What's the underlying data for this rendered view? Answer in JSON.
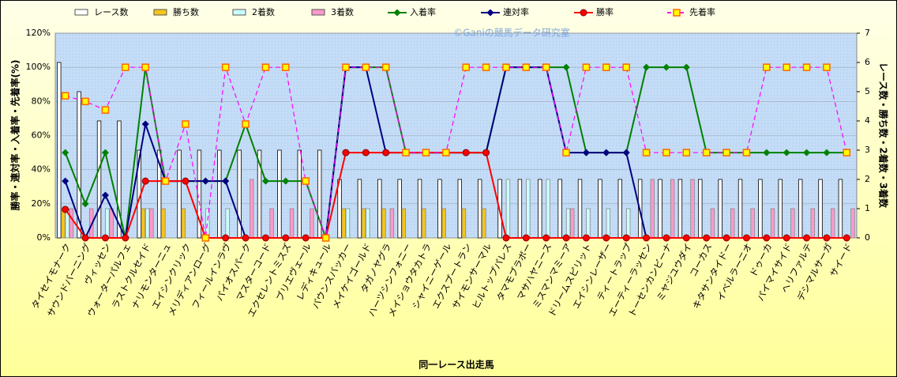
{
  "chart_data": {
    "type": "combo",
    "annotation": "©Ganiの競馬データ研究室",
    "x_label": "同一レース出走馬",
    "y_label": "勝率・連対率・入着率・先着率(%)",
    "y2_label": "レース数・勝ち数・2着数・3着数",
    "categories": [
      "タイセイモナーク",
      "サウンドバーニング",
      "ヴィッセン",
      "ウォーターパルフェ",
      "ラストクルセイド",
      "ナリモンターニュ",
      "エイシンクリック",
      "メリディアンローグ",
      "フィールインラヴ",
      "パイオスパーク",
      "マスターコード",
      "エクセレントミスズ",
      "ブリエヴェール",
      "レディキュール",
      "バウンスバッカー",
      "メイケイゴールド",
      "タガノヤグラ",
      "ハーツシンフォニー",
      "メイショウタカトラ",
      "シャイニーゲール",
      "エクスプートラン",
      "サイモンサーマル",
      "ヒルトップパレス",
      "タマモブラボー",
      "マサハヤニース",
      "ミスマンマミーア",
      "ドリームスピリット",
      "エイシンレーザー",
      "ティートラップ",
      "エーティーラッセン",
      "トーセンカンビーナ",
      "ミヤジユウダイ",
      "コーカス",
      "キタサンタイドー",
      "イベルラーニオ",
      "ドゥーカ",
      "パイマイサイド",
      "ヘリファルテ",
      "デシマルサーガ",
      "サイード"
    ],
    "ylim": [
      0,
      120
    ],
    "yticks": [
      {
        "value": 0,
        "label": "0%"
      },
      {
        "value": 20,
        "label": "20%"
      },
      {
        "value": 40,
        "label": "40%"
      },
      {
        "value": 60,
        "label": "60%"
      },
      {
        "value": 80,
        "label": "80%"
      },
      {
        "value": 100,
        "label": "100%"
      },
      {
        "value": 120,
        "label": "120%"
      }
    ],
    "y2lim": [
      0,
      7
    ],
    "y2ticks": [
      0,
      1,
      2,
      3,
      4,
      5,
      6,
      7
    ],
    "series": [
      {
        "name": "レース数",
        "type": "bar",
        "axis": "y2",
        "color": "#ffffff",
        "values": [
          6,
          5,
          4,
          4,
          3,
          3,
          3,
          3,
          3,
          3,
          3,
          3,
          3,
          3,
          2,
          2,
          2,
          2,
          2,
          2,
          2,
          2,
          2,
          2,
          2,
          2,
          2,
          2,
          2,
          2,
          2,
          2,
          2,
          2,
          2,
          2,
          2,
          2,
          2,
          2
        ]
      },
      {
        "name": "勝ち数",
        "type": "bar",
        "axis": "y2",
        "color": "#f5c518",
        "values": [
          1,
          0,
          0,
          0,
          1,
          1,
          1,
          0,
          0,
          0,
          0,
          0,
          0,
          0,
          1,
          1,
          1,
          1,
          1,
          1,
          1,
          1,
          0,
          0,
          0,
          0,
          0,
          0,
          0,
          0,
          0,
          0,
          0,
          0,
          0,
          0,
          0,
          0,
          0,
          0
        ]
      },
      {
        "name": "2着数",
        "type": "bar",
        "axis": "y2",
        "color": "#ccffff",
        "values": [
          1,
          0,
          1,
          0,
          1,
          0,
          0,
          1,
          1,
          0,
          0,
          0,
          0,
          0,
          1,
          1,
          0,
          0,
          0,
          0,
          0,
          0,
          2,
          2,
          2,
          1,
          1,
          1,
          1,
          0,
          0,
          0,
          0,
          0,
          0,
          0,
          0,
          0,
          0,
          0
        ]
      },
      {
        "name": "3着数",
        "type": "bar",
        "axis": "y2",
        "color": "#ff99cc",
        "values": [
          1,
          1,
          1,
          0,
          1,
          0,
          0,
          0,
          0,
          2,
          1,
          1,
          1,
          0,
          0,
          0,
          1,
          0,
          0,
          0,
          0,
          0,
          0,
          0,
          0,
          1,
          0,
          0,
          0,
          2,
          2,
          2,
          1,
          1,
          1,
          1,
          1,
          1,
          1,
          1
        ]
      },
      {
        "name": "入着率",
        "type": "line",
        "axis": "y",
        "color": "#008000",
        "marker": "diamond",
        "values": [
          50,
          20,
          50,
          0,
          100,
          33.3,
          33.3,
          33.3,
          33.3,
          66.7,
          33.3,
          33.3,
          33.3,
          0,
          100,
          100,
          100,
          50,
          50,
          50,
          50,
          50,
          100,
          100,
          100,
          100,
          50,
          50,
          50,
          100,
          100,
          100,
          50,
          50,
          50,
          50,
          50,
          50,
          50,
          50
        ]
      },
      {
        "name": "連対率",
        "type": "line",
        "axis": "y",
        "color": "#000080",
        "marker": "diamond",
        "values": [
          33.3,
          0,
          25,
          0,
          66.7,
          33.3,
          33.3,
          33.3,
          33.3,
          0,
          0,
          0,
          0,
          0,
          100,
          100,
          50,
          50,
          50,
          50,
          50,
          50,
          100,
          100,
          100,
          50,
          50,
          50,
          50,
          0,
          0,
          0,
          0,
          0,
          0,
          0,
          0,
          0,
          0,
          0
        ]
      },
      {
        "name": "勝率",
        "type": "line",
        "axis": "y",
        "color": "#ff0000",
        "marker": "circle",
        "values": [
          16.7,
          0,
          0,
          0,
          33.3,
          33.3,
          33.3,
          0,
          0,
          0,
          0,
          0,
          0,
          0,
          50,
          50,
          50,
          50,
          50,
          50,
          50,
          50,
          0,
          0,
          0,
          0,
          0,
          0,
          0,
          0,
          0,
          0,
          0,
          0,
          0,
          0,
          0,
          0,
          0,
          0
        ]
      },
      {
        "name": "先着率",
        "type": "line",
        "axis": "y",
        "color": "#ff00ff",
        "marker": "square",
        "dashed": true,
        "values": [
          83.3,
          80,
          75,
          100,
          100,
          33.3,
          66.7,
          0,
          100,
          66.7,
          100,
          100,
          33.3,
          0,
          100,
          100,
          100,
          50,
          50,
          50,
          100,
          100,
          100,
          100,
          100,
          50,
          100,
          100,
          100,
          50,
          50,
          50,
          50,
          50,
          50,
          100,
          100,
          100,
          100,
          50
        ]
      }
    ]
  }
}
